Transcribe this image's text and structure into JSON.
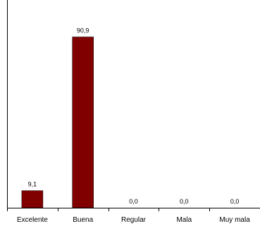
{
  "chart_data": {
    "type": "bar",
    "categories": [
      "Excelente",
      "Buena",
      "Regular",
      "Mala",
      "Muy mala"
    ],
    "values": [
      9.1,
      90.9,
      0.0,
      0.0,
      0.0
    ],
    "data_labels": [
      "9,1",
      "90,9",
      "0,0",
      "0,0",
      "0,0"
    ],
    "title": "",
    "xlabel": "",
    "ylabel": "",
    "ylim": [
      0,
      100
    ],
    "grid": false,
    "legend": "none",
    "bar_color": "#800000",
    "frame_color": "#000000"
  }
}
